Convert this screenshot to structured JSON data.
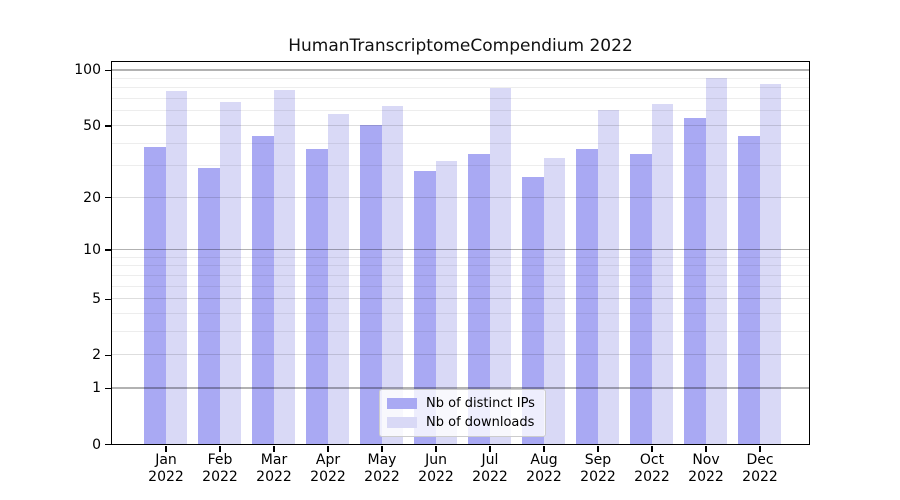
{
  "title": "HumanTranscriptomeCompendium 2022",
  "chart_data": {
    "type": "bar",
    "title": "HumanTranscriptomeCompendium 2022",
    "categories": [
      "Jan",
      "Feb",
      "Mar",
      "Apr",
      "May",
      "Jun",
      "Jul",
      "Aug",
      "Sep",
      "Oct",
      "Nov",
      "Dec"
    ],
    "x_year_label": "2022",
    "series": [
      {
        "name": "Nb of distinct IPs",
        "color": "#a9a9f3",
        "values": [
          38,
          29,
          44,
          37,
          50,
          28,
          35,
          26,
          37,
          35,
          55,
          44
        ]
      },
      {
        "name": "Nb of downloads",
        "color": "#d9d9f6",
        "values": [
          77,
          67,
          78,
          58,
          64,
          32,
          80,
          33,
          61,
          65,
          90,
          84
        ]
      }
    ],
    "y_scale": "log1p",
    "ylim": [
      0,
      110
    ],
    "y_ticks": [
      0,
      1,
      2,
      5,
      10,
      20,
      50,
      100
    ],
    "y_minor_ticks": [
      3,
      4,
      6,
      7,
      8,
      9,
      30,
      40,
      60,
      70,
      80,
      90
    ],
    "y_decade_ticks": [
      1,
      10,
      100
    ],
    "grid": true,
    "legend_position": "bottom-center"
  }
}
